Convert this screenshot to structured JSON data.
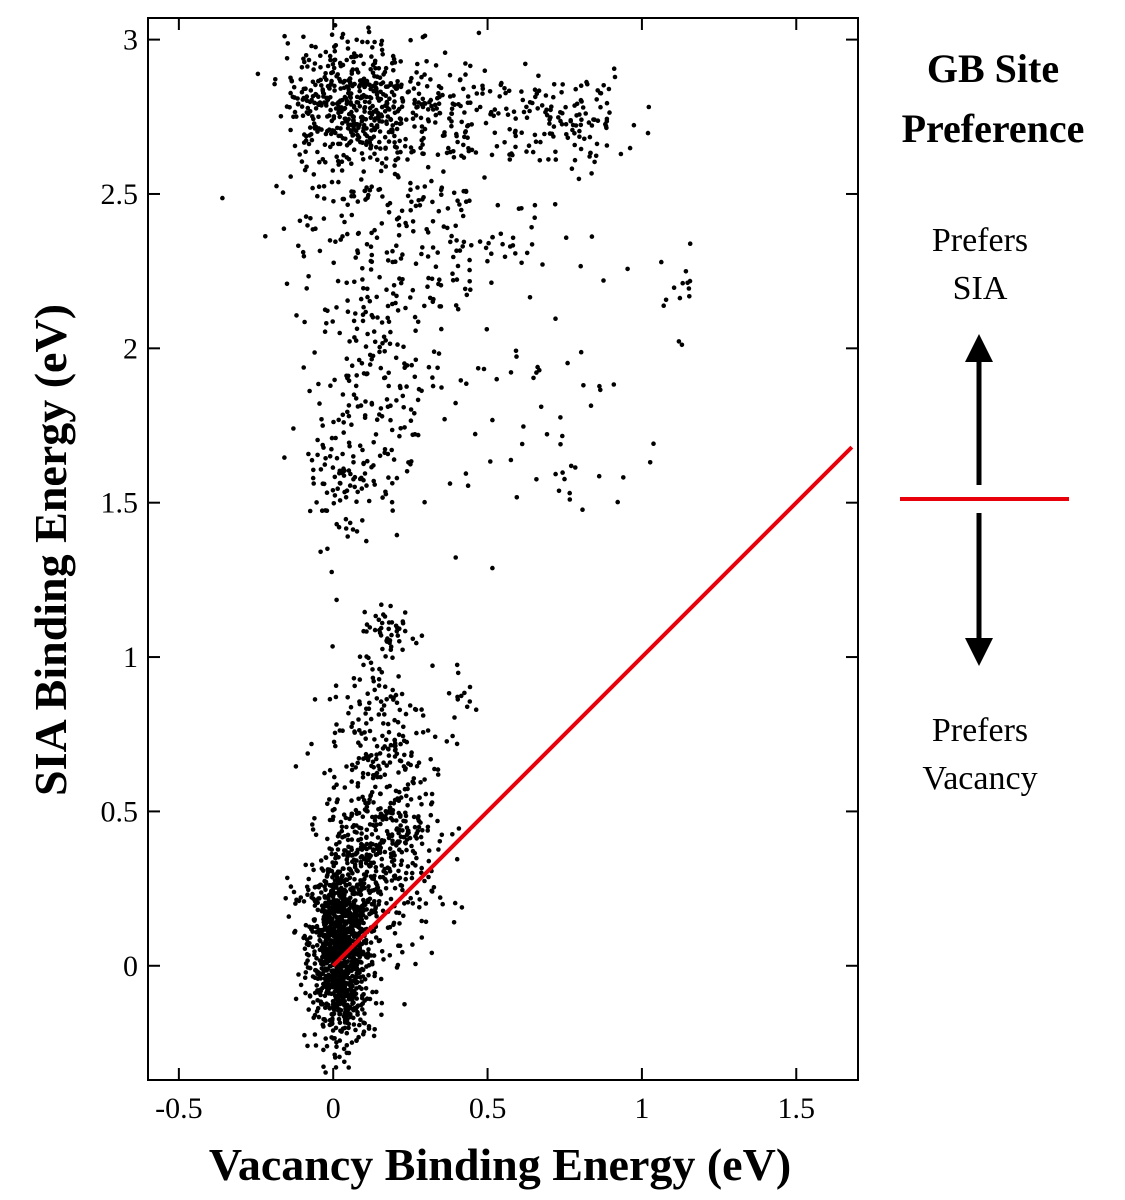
{
  "chart_data": {
    "type": "scatter",
    "xlabel": "Vacancy Binding Energy (eV)",
    "ylabel": "SIA Binding Energy (eV)",
    "xlim": [
      -0.6,
      1.7
    ],
    "ylim": [
      -0.37,
      3.07
    ],
    "xticks": [
      "-0.5",
      "0",
      "0.5",
      "1",
      "1.5"
    ],
    "yticks": [
      "0",
      "0.5",
      "1",
      "1.5",
      "2",
      "2.5",
      "3"
    ],
    "grid": false,
    "point_color": "#000000",
    "reference_line": {
      "x": [
        0,
        1.68
      ],
      "y": [
        0,
        1.68
      ],
      "color": "#e8000b"
    },
    "clusters": [
      {
        "cx": 0.02,
        "cy": 0.08,
        "sx": 0.05,
        "sy": 0.12,
        "n": 900
      },
      {
        "cx": 0.03,
        "cy": -0.12,
        "sx": 0.04,
        "sy": 0.08,
        "n": 200
      },
      {
        "cx": 0.12,
        "cy": 0.25,
        "sx": 0.1,
        "sy": 0.15,
        "n": 300
      },
      {
        "cx": 0.15,
        "cy": 0.48,
        "sx": 0.09,
        "sy": 0.13,
        "n": 260
      },
      {
        "cx": 0.15,
        "cy": 0.8,
        "sx": 0.08,
        "sy": 0.12,
        "n": 110
      },
      {
        "cx": 0.18,
        "cy": 1.08,
        "sx": 0.05,
        "sy": 0.05,
        "n": 50
      },
      {
        "cx": 0.42,
        "cy": 0.85,
        "sx": 0.03,
        "sy": 0.08,
        "n": 15
      },
      {
        "cx": 0.05,
        "cy": 1.6,
        "sx": 0.09,
        "sy": 0.12,
        "n": 110
      },
      {
        "cx": 0.15,
        "cy": 1.9,
        "sx": 0.1,
        "sy": 0.12,
        "n": 110
      },
      {
        "cx": 0.1,
        "cy": 2.2,
        "sx": 0.12,
        "sy": 0.1,
        "n": 80
      },
      {
        "cx": 0.38,
        "cy": 2.3,
        "sx": 0.15,
        "sy": 0.08,
        "n": 70
      },
      {
        "cx": 0.6,
        "cy": 1.75,
        "sx": 0.25,
        "sy": 0.2,
        "n": 60
      },
      {
        "cx": 0.05,
        "cy": 2.8,
        "sx": 0.1,
        "sy": 0.1,
        "n": 450
      },
      {
        "cx": 0.35,
        "cy": 2.75,
        "sx": 0.15,
        "sy": 0.1,
        "n": 180
      },
      {
        "cx": 0.75,
        "cy": 2.75,
        "sx": 0.12,
        "sy": 0.08,
        "n": 120
      },
      {
        "cx": 0.2,
        "cy": 2.5,
        "sx": 0.2,
        "sy": 0.08,
        "n": 120
      },
      {
        "cx": 1.1,
        "cy": 2.2,
        "sx": 0.06,
        "sy": 0.08,
        "n": 15
      }
    ]
  },
  "legend": {
    "title_line1": "GB Site",
    "title_line2": "Preference",
    "up_line1": "Prefers",
    "up_line2": "SIA",
    "down_line1": "Prefers",
    "down_line2": "Vacancy",
    "line_color": "#e8000b",
    "arrow_color": "#000000"
  }
}
